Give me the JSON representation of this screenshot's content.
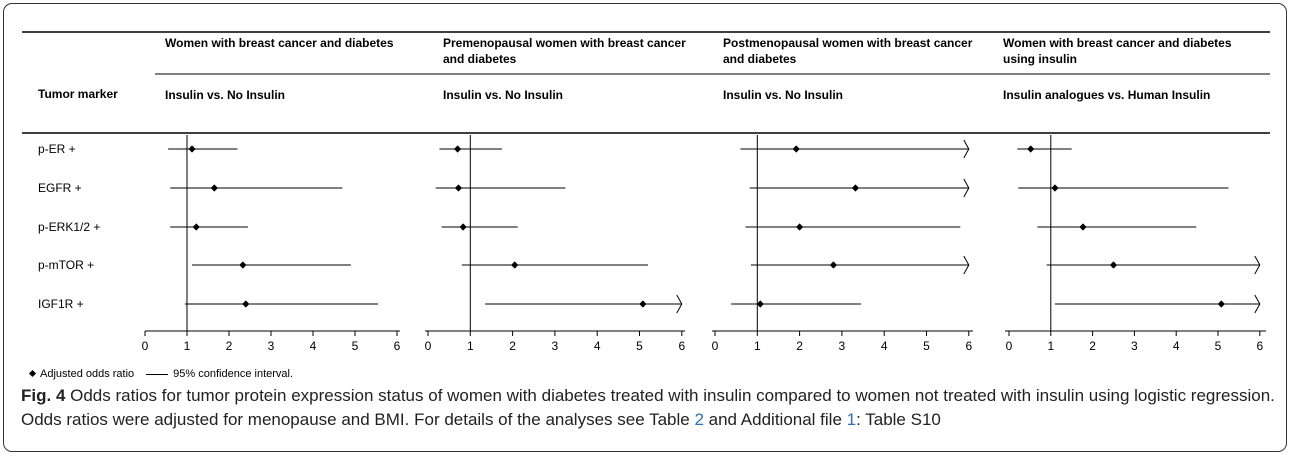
{
  "chart_data": {
    "type": "forest",
    "row_header": "Tumor marker",
    "markers": [
      "p-ER +",
      "EGFR +",
      "p-ERK1/2 +",
      "p-mTOR +",
      "IGF1R +"
    ],
    "x_ticks": [
      "0",
      "1",
      "2",
      "3",
      "4",
      "5",
      "6"
    ],
    "xlim": [
      0,
      6
    ],
    "reference_line": 1,
    "panels": [
      {
        "title": "Women with breast cancer and diabetes",
        "comparison": "Insulin vs. No Insulin",
        "estimates": [
          {
            "or": 1.12,
            "lo": 0.55,
            "hi": 2.2,
            "hi_truncated": false
          },
          {
            "or": 1.65,
            "lo": 0.6,
            "hi": 4.7,
            "hi_truncated": false
          },
          {
            "or": 1.22,
            "lo": 0.6,
            "hi": 2.45,
            "hi_truncated": false
          },
          {
            "or": 2.33,
            "lo": 1.12,
            "hi": 4.9,
            "hi_truncated": false
          },
          {
            "or": 2.4,
            "lo": 0.95,
            "hi": 5.55,
            "hi_truncated": false
          }
        ]
      },
      {
        "title": "Premenopausal women with breast cancer and diabetes",
        "comparison": "Insulin vs. No Insulin",
        "estimates": [
          {
            "or": 0.7,
            "lo": 0.27,
            "hi": 1.75,
            "hi_truncated": false
          },
          {
            "or": 0.72,
            "lo": 0.18,
            "hi": 3.25,
            "hi_truncated": false
          },
          {
            "or": 0.83,
            "lo": 0.32,
            "hi": 2.12,
            "hi_truncated": false
          },
          {
            "or": 2.05,
            "lo": 0.8,
            "hi": 5.2,
            "hi_truncated": false
          },
          {
            "or": 5.08,
            "lo": 1.35,
            "hi": 6,
            "hi_truncated": true
          }
        ]
      },
      {
        "title": "Postmenopausal women with breast cancer and diabetes",
        "comparison": "Insulin vs. No Insulin",
        "estimates": [
          {
            "or": 1.92,
            "lo": 0.6,
            "hi": 6,
            "hi_truncated": true
          },
          {
            "or": 3.32,
            "lo": 0.82,
            "hi": 6,
            "hi_truncated": true
          },
          {
            "or": 2.0,
            "lo": 0.72,
            "hi": 5.8,
            "hi_truncated": false
          },
          {
            "or": 2.8,
            "lo": 0.85,
            "hi": 6,
            "hi_truncated": true
          },
          {
            "or": 1.07,
            "lo": 0.38,
            "hi": 3.45,
            "hi_truncated": false
          }
        ]
      },
      {
        "title": "Women with breast cancer and diabetes using insulin",
        "comparison": "Insulin analogues vs. Human Insulin",
        "estimates": [
          {
            "or": 0.52,
            "lo": 0.2,
            "hi": 1.5,
            "hi_truncated": false
          },
          {
            "or": 1.1,
            "lo": 0.22,
            "hi": 5.25,
            "hi_truncated": false
          },
          {
            "or": 1.77,
            "lo": 0.68,
            "hi": 4.48,
            "hi_truncated": false
          },
          {
            "or": 2.5,
            "lo": 0.9,
            "hi": 6,
            "hi_truncated": true
          },
          {
            "or": 5.08,
            "lo": 1.1,
            "hi": 6,
            "hi_truncated": true
          }
        ]
      }
    ]
  },
  "legend": {
    "estimate": "Adjusted odds ratio",
    "interval": "95% confidence interval."
  },
  "caption": {
    "label": "Fig. 4",
    "text_before_table": " Odds ratios for tumor protein expression status of women with diabetes treated with insulin compared to women not treated with insulin using logistic regression. Odds ratios were adjusted for menopause and BMI. For details of the analyses see Table ",
    "table_ref": "2",
    "text_mid": " and Additional file ",
    "file_ref": "1",
    "text_after": ": Table S10"
  }
}
